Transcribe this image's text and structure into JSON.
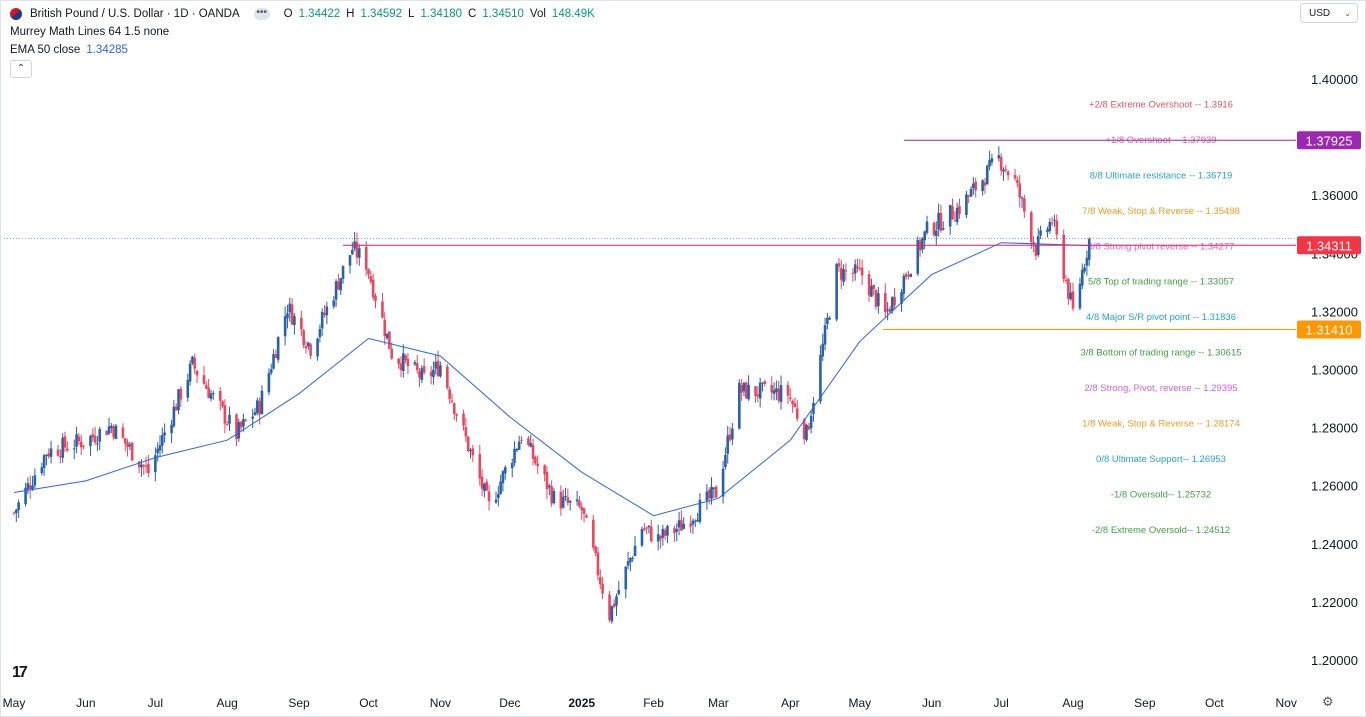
{
  "legend": {
    "title": "British Pound / U.S. Dollar · 1D · OANDA",
    "o_label": "O",
    "o_val": "1.34422",
    "h_label": "H",
    "h_val": "1.34592",
    "l_label": "L",
    "l_val": "1.34180",
    "c_label": "C",
    "c_val": "1.34510",
    "vol_label": "Vol",
    "vol_val": "148.49K",
    "indicator1": "Murrey Math Lines 64 1.5 none",
    "indicator2_label": "EMA 50 close",
    "indicator2_val": "1.34285"
  },
  "currency_select": {
    "value": "USD"
  },
  "chart_data": {
    "type": "line",
    "symbol": "GBP/USD",
    "interval": "1D",
    "ylim": [
      1.19,
      1.41
    ],
    "grid": false,
    "y_ticks": [
      "1.40000",
      "1.38000",
      "1.36000",
      "1.34000",
      "1.32000",
      "1.30000",
      "1.28000",
      "1.26000",
      "1.24000",
      "1.22000",
      "1.20000"
    ],
    "x_ticks": [
      "May",
      "Jun",
      "Jul",
      "Aug",
      "Sep",
      "Oct",
      "Nov",
      "Dec",
      "2025",
      "Feb",
      "Mar",
      "Apr",
      "May",
      "Jun",
      "Jul",
      "Aug",
      "Sep",
      "Oct",
      "Nov"
    ],
    "series": [
      {
        "name": "GBP/USD close (approx.)",
        "x": [
          "2024-05-01",
          "2024-05-15",
          "2024-06-01",
          "2024-06-12",
          "2024-06-28",
          "2024-07-17",
          "2024-08-05",
          "2024-08-15",
          "2024-08-27",
          "2024-09-06",
          "2024-09-24",
          "2024-09-30",
          "2024-10-11",
          "2024-10-25",
          "2024-11-01",
          "2024-11-22",
          "2024-12-06",
          "2024-12-20",
          "2025-01-01",
          "2025-01-13",
          "2025-01-27",
          "2025-02-03",
          "2025-02-12",
          "2025-02-28",
          "2025-03-10",
          "2025-03-31",
          "2025-04-08",
          "2025-04-21",
          "2025-05-02",
          "2025-05-12",
          "2025-05-30",
          "2025-06-13",
          "2025-06-30",
          "2025-07-07",
          "2025-07-16",
          "2025-07-23",
          "2025-08-01",
          "2025-08-08"
        ],
        "values": [
          1.251,
          1.272,
          1.276,
          1.281,
          1.265,
          1.302,
          1.278,
          1.288,
          1.322,
          1.308,
          1.342,
          1.337,
          1.306,
          1.297,
          1.302,
          1.253,
          1.278,
          1.256,
          1.252,
          1.216,
          1.246,
          1.242,
          1.246,
          1.258,
          1.293,
          1.292,
          1.278,
          1.334,
          1.333,
          1.319,
          1.348,
          1.356,
          1.373,
          1.365,
          1.342,
          1.352,
          1.32,
          1.345
        ]
      },
      {
        "name": "EMA 50 (approx.)",
        "x": [
          "2024-05-01",
          "2024-06-01",
          "2024-07-01",
          "2024-08-01",
          "2024-09-01",
          "2024-10-01",
          "2024-11-01",
          "2024-12-01",
          "2025-01-01",
          "2025-02-01",
          "2025-03-01",
          "2025-04-01",
          "2025-05-01",
          "2025-06-01",
          "2025-07-01",
          "2025-08-08"
        ],
        "values": [
          1.258,
          1.262,
          1.27,
          1.276,
          1.292,
          1.311,
          1.305,
          1.284,
          1.265,
          1.25,
          1.256,
          1.276,
          1.31,
          1.333,
          1.344,
          1.343
        ]
      }
    ],
    "murrey_lines": [
      {
        "label": "+2/8 Extreme Overshoot -- ",
        "value": "1.3916",
        "color": "#e0565b"
      },
      {
        "label": "+1/8 Overshoot -- ",
        "value": "1.37939",
        "color": "#e05cb3"
      },
      {
        "label": "8/8 Ultimate resistance -- ",
        "value": "1.36719",
        "color": "#26a6c9"
      },
      {
        "label": "7/8 Weak, Stop & Reverse -- ",
        "value": "1.35498",
        "color": "#f59b22"
      },
      {
        "label": "6/8 Strong pivot reverse -- ",
        "value": "1.34277",
        "color": "#d65fd3"
      },
      {
        "label": "5/8 Top of trading range -- ",
        "value": "1.33057",
        "color": "#43a047"
      },
      {
        "label": "4/8 Major S/R pivot point -- ",
        "value": "1.31836",
        "color": "#26a6c9"
      },
      {
        "label": "3/8 Bottom of trading range -- ",
        "value": "1.30615",
        "color": "#43a047"
      },
      {
        "label": "2/8 Strong, Pivot, reverse -- ",
        "value": "1.29395",
        "color": "#d65fd3"
      },
      {
        "label": "1/8 Weak, Stop & Reverse -- ",
        "value": "1.28174",
        "color": "#f59b22"
      },
      {
        "label": "0/8 Ultimate Support-- ",
        "value": "1.26953",
        "color": "#26a6c9"
      },
      {
        "label": "-1/8 Oversold-- ",
        "value": "1.25732",
        "color": "#43a047"
      },
      {
        "label": "-2/8 Extreme Oversold-- ",
        "value": "1.24512",
        "color": "#43a047"
      }
    ],
    "price_tags": [
      {
        "value": "1.37925",
        "color": "#9c27b0"
      },
      {
        "value": "1.34311",
        "color": "#f23645"
      },
      {
        "value": "1.31410",
        "color": "#ff9800"
      }
    ],
    "colors": {
      "up": "#2962a8",
      "down": "#e8475f",
      "ema": "#2962ff"
    }
  }
}
